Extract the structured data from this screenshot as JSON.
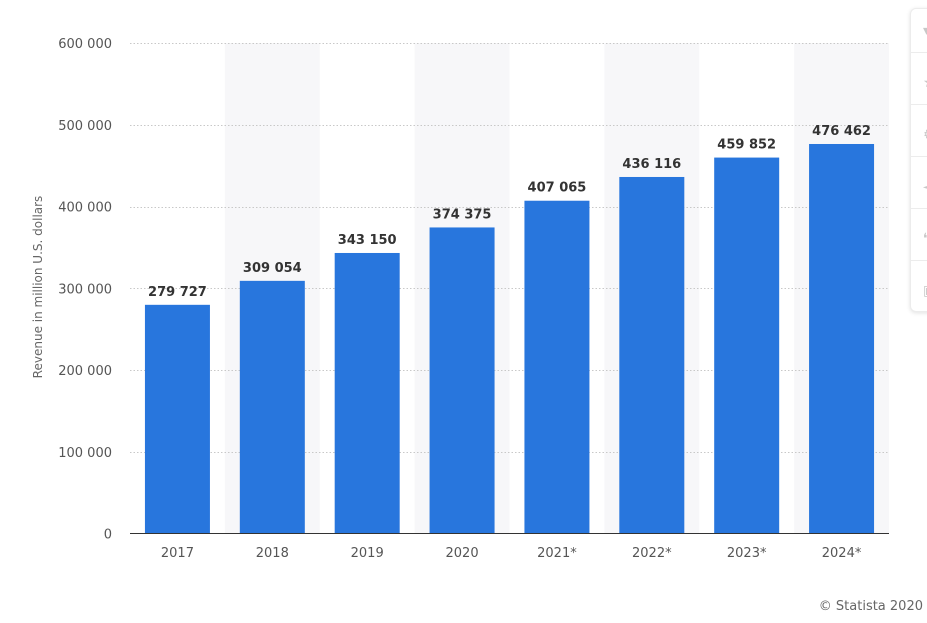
{
  "chart_data": {
    "type": "bar",
    "categories": [
      "2017",
      "2018",
      "2019",
      "2020",
      "2021*",
      "2022*",
      "2023*",
      "2024*"
    ],
    "values": [
      279727,
      309054,
      343150,
      374375,
      407065,
      436116,
      459852,
      476462
    ],
    "value_labels": [
      "279 727",
      "309 054",
      "343 150",
      "374 375",
      "407 065",
      "436 116",
      "459 852",
      "476 462"
    ],
    "title": "",
    "xlabel": "",
    "ylabel": "Revenue in million U.S. dollars",
    "ylim": [
      0,
      600000
    ],
    "yticks": [
      0,
      100000,
      200000,
      300000,
      400000,
      500000,
      600000
    ],
    "ytick_labels": [
      "0",
      "100 000",
      "200 000",
      "300 000",
      "400 000",
      "500 000",
      "600 000"
    ],
    "grid": true,
    "bar_color": "#2876dd",
    "alt_band_color": "#f7f7f9"
  },
  "credit": "© Statista 2020",
  "toolbar_icons": [
    "bell-icon",
    "star-icon",
    "gear-icon",
    "share-icon",
    "quote-icon",
    "print-icon"
  ]
}
